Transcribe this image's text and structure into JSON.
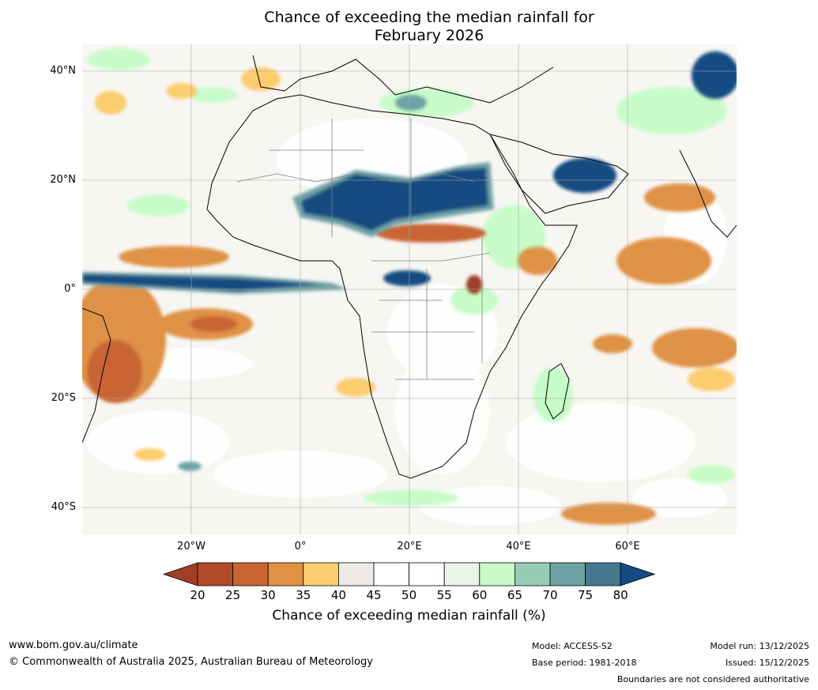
{
  "title_line1": "Chance of exceeding the median rainfall for",
  "title_line2": "February 2026",
  "lat_labels": [
    "40°N",
    "20°N",
    "0°",
    "20°S",
    "40°S"
  ],
  "lon_labels": [
    "20°W",
    "0°",
    "20°E",
    "40°E",
    "60°E"
  ],
  "colorbar": {
    "ticks": [
      "20",
      "25",
      "30",
      "35",
      "40",
      "45",
      "50",
      "55",
      "60",
      "65",
      "70",
      "75",
      "80"
    ],
    "title": "Chance of exceeding median rainfall (%)",
    "colors": [
      "#9e3f26",
      "#b3492a",
      "#c96535",
      "#df9244",
      "#fccd6e",
      "#eeebe6",
      "#ffffff",
      "#ffffff",
      "#e7f6e7",
      "#c7fcc8",
      "#98ccb6",
      "#6ea2a5",
      "#45788f",
      "#134b82"
    ]
  },
  "footer": {
    "website": "www.bom.gov.au/climate",
    "copyright": "© Commonwealth of Australia 2025, Australian Bureau of Meteorology",
    "model": "Model: ACCESS-S2",
    "base_period": "Base period: 1981-2018",
    "model_run": "Model run: 13/12/2025",
    "issued": "Issued: 15/12/2025",
    "disclaimer": "Boundaries are not considered authoritative"
  }
}
